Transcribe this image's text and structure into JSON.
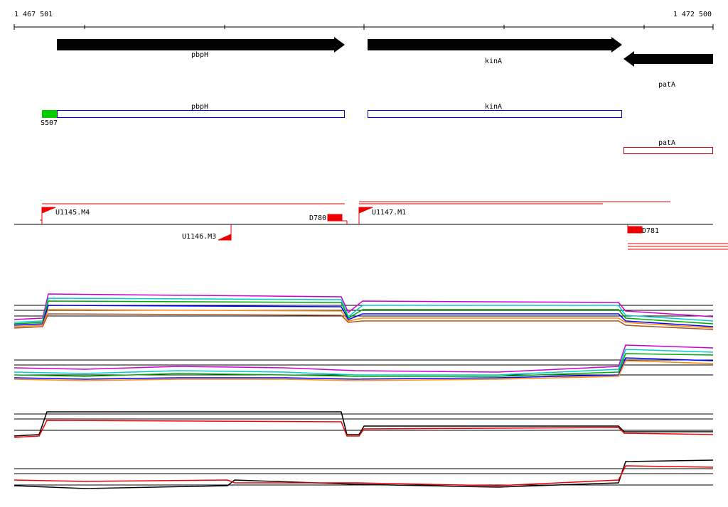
{
  "ruler": {
    "start": "1 467 501",
    "end": "1 472 500"
  },
  "genes": [
    {
      "label": "pbpH"
    },
    {
      "label": "kinA"
    },
    {
      "label": "patA"
    }
  ],
  "annotations": [
    {
      "label": "pbpH"
    },
    {
      "label": "kinA"
    },
    {
      "label": "patA"
    }
  ],
  "features": [
    {
      "label": "S507"
    },
    {
      "label": "U1145.M4"
    },
    {
      "label": "D780"
    },
    {
      "label": "U1147.M1"
    },
    {
      "label": "U1146.M3"
    },
    {
      "label": "D781"
    }
  ]
}
